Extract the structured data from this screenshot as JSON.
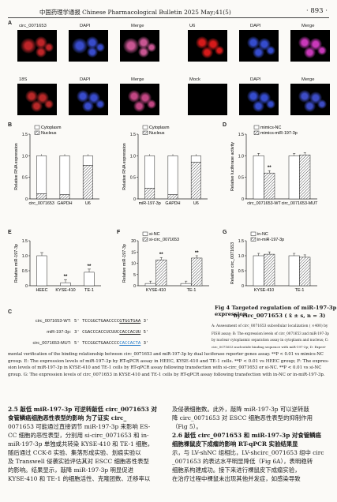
{
  "header": {
    "journal": "中国药理学通报  Chinese Pharmacological Bulletin  2025 May;41(5)",
    "page": "· 893 ·"
  },
  "panel_labels": {
    "a": "A",
    "b": "B",
    "c": "C",
    "d": "D",
    "e": "E",
    "f": "F",
    "g": "G"
  },
  "micro": {
    "row1": [
      "circ_0071653",
      "DAPI",
      "Merge",
      "U6",
      "DAPI",
      "Merge"
    ],
    "row2": [
      "18S",
      "DAPI",
      "Merge",
      "Mock",
      "DAPI",
      "Merge"
    ]
  },
  "sequences": {
    "wt_label": "circ_0071653-WT:",
    "wt_pre": "5' TCCGGCTGAACCCC",
    "wt_hl": "GTGGTGAA",
    "wt_post": " 3'",
    "mir_label": "miR-197-3p:",
    "mir_pre": "3' CGACCCACCUCUUC",
    "mir_hl": "CACCACUU",
    "mir_post": " 5'",
    "mut_label": "circ_0071653-MUT:",
    "mut_pre": "5' TCCGGCTGAACCCC",
    "mut_hl": "CACCACTA",
    "mut_post": " 3'"
  },
  "figure4": {
    "title_line1": "Fig 4   Targeted regulation of miR-197-3p expression",
    "title_line2": "by circ_0071653 ( x̄ ± s, n = 3)",
    "caption_right": [
      "A: Assessment of circ_0071653 subcellular localization ( ×400) by",
      "FISH assay; B: The expression levels of circ_0071653 and miR-197-3p",
      "by nuclear cytoplasmic separation assay in cytoplasm and nucleus; C:",
      "circ_0071653 nucleotide binding sequence with miR-197-3p; D: Experi-"
    ],
    "caption_full": [
      "mental verification of the binding relationship between circ_0071653 and miR-197-3p by dual luciferase reporter genes assay.  **P < 0.01 vs mimics-NC",
      "group.  E: The expression levels of miR-197-3p by RT-qPCR assay in HEEC, KYSE-410 and TE-1 cells.  **P < 0.01 vs HEEC group; F: The expres-",
      "sion levels of miR-197-3p in KYSE-410 and TE-1 cells by RT-qPCR assay following transfection with si-circ_0071653 or si-NC.  **P < 0.01 vs si-NC",
      "group.  G: The expression levels of circ_0071653 in KYSE-410 and TE-1 cells by RT-qPCR assay following transfection with in-NC or in-miR-197-3p."
    ]
  },
  "body_left": {
    "heading": "2.5   敲低 miR-197-3p 可逆转敲低 circ_0071653 对",
    "heading2": "食管鳞癌细胞恶性表型的影响",
    "lines": [
      "食管鳞癌细胞恶性表型的影响    为了证实 circ_",
      "0071653 可能通过直接调节 miR-197-3p 来影响 ES-",
      "CC 细胞的恶性表型，分别用 si-circ_0071653 和 in-",
      "miR-197-3p 单独或共转染 KYSE-410 和 TE-1 细胞，",
      "随后通过 CCK-8 实验、集落形成实验、划痕实验以",
      "及 Transwell 侵袭实验评估其对 ESCC 细胞恶性表型",
      "的影响。结果显示，敲降 miR-197-3p 明显促进",
      "KYSE-410 和 TE-1 的细胞活性、克隆团数、迁移率以"
    ]
  },
  "body_right": {
    "lines": [
      "及侵袭细胞数。此外，敲降 miR-197-3p 可以逆转敲",
      "降 circ_0071653 对 ESCC 细胞恶性表型的抑制作用",
      "（Fig 5）。",
      "2.6   敲低 circ_0071653 和 miR-197-3p 对食管鳞癌",
      "细胞裸鼠皮下成瘤的影响    RT-qPCR 实验结果显",
      "示，与 LV-shNC 组相比，LV-shcirc_0071653 组中 circ",
      "_0071653 的表达水平明显降低（Fig 6A），表明稳转",
      "细胞系构建成功。接下来进行裸鼠皮下成瘤实验，",
      "在治疗过程中裸鼠未出现其他并发症，如感染导致"
    ]
  },
  "chart_data": [
    {
      "id": "B1",
      "type": "bar",
      "stacked": true,
      "categories": [
        "circ_0071653",
        "GAPDH",
        "U6"
      ],
      "series": [
        {
          "name": "Cytoplasm",
          "values": [
            0.88,
            0.9,
            0.22
          ]
        },
        {
          "name": "Nucleus",
          "values": [
            0.12,
            0.1,
            0.78
          ]
        }
      ],
      "ylabel": "Relative RNA expression",
      "ylim": [
        0,
        1.5
      ],
      "yticks": [
        0,
        0.5,
        1.0,
        1.5
      ]
    },
    {
      "id": "B2",
      "type": "bar",
      "stacked": true,
      "categories": [
        "miR-197-3p",
        "GAPDH",
        "U6"
      ],
      "series": [
        {
          "name": "Cytoplasm",
          "values": [
            0.75,
            0.9,
            0.15
          ]
        },
        {
          "name": "Nucleus",
          "values": [
            0.25,
            0.1,
            0.85
          ]
        }
      ],
      "ylabel": "Relative RNA expression",
      "ylim": [
        0,
        1.5
      ],
      "yticks": [
        0,
        0.5,
        1.0,
        1.5
      ]
    },
    {
      "id": "D",
      "type": "bar",
      "categories": [
        "circ_0071653-WT",
        "circ_0071653-MUT"
      ],
      "series": [
        {
          "name": "mimics-NC",
          "values": [
            1.0,
            1.0
          ]
        },
        {
          "name": "mimics-miR-197-3p",
          "values": [
            0.6,
            1.02
          ]
        }
      ],
      "ylabel": "Relative luciferase activity",
      "ylim": [
        0,
        1.5
      ],
      "yticks": [
        0,
        0.5,
        1.0,
        1.5
      ],
      "sig": [
        "**",
        ""
      ]
    },
    {
      "id": "E",
      "type": "bar",
      "categories": [
        "HEEC",
        "KYSE-410",
        "TE-1"
      ],
      "series": [
        {
          "name": "",
          "values": [
            1.0,
            0.1,
            0.45
          ]
        }
      ],
      "ylabel": "Relative miR-197-3p",
      "ylim": [
        0,
        1.5
      ],
      "yticks": [
        0,
        0.5,
        1.0,
        1.5
      ],
      "sig": [
        "",
        "**",
        "**"
      ]
    },
    {
      "id": "F",
      "type": "bar",
      "categories": [
        "KYSE-410",
        "TE-1"
      ],
      "series": [
        {
          "name": "si-NC",
          "values": [
            1.0,
            1.0
          ]
        },
        {
          "name": "si-circ_0071653",
          "values": [
            11.5,
            12.3
          ]
        }
      ],
      "ylabel": "Relative miR-197-3p",
      "ylim": [
        0,
        20
      ],
      "yticks": [
        0,
        5,
        10,
        15,
        20
      ],
      "sig": [
        "**",
        "**"
      ]
    },
    {
      "id": "G",
      "type": "bar",
      "categories": [
        "KYSE-410",
        "TE-1"
      ],
      "series": [
        {
          "name": "in-NC",
          "values": [
            1.0,
            1.0
          ]
        },
        {
          "name": "in-miR-197-3p",
          "values": [
            1.05,
            0.95
          ]
        }
      ],
      "ylabel": "Relative circ_0071653",
      "ylim": [
        0,
        1.5
      ],
      "yticks": [
        0,
        0.5,
        1.0,
        1.5
      ],
      "sig": [
        "",
        ""
      ]
    }
  ]
}
